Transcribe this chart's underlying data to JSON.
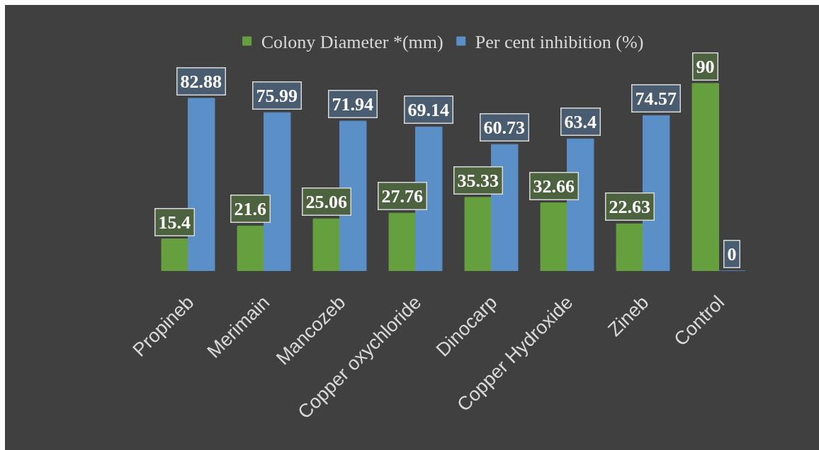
{
  "chart_data": {
    "type": "bar",
    "categories": [
      "Propineb",
      "Merimain",
      "Mancozeb",
      "Copper oxychloride",
      "Dinocarp",
      "Copper Hydroxide",
      "Zineb",
      "Control"
    ],
    "series": [
      {
        "name": "Colony Diameter *(mm)",
        "color": "#66a03e",
        "values": [
          15.4,
          21.6,
          25.06,
          27.76,
          35.33,
          32.66,
          22.63,
          90
        ]
      },
      {
        "name": "Per cent inhibition (%)",
        "color": "#5b8fc8",
        "values": [
          82.88,
          75.99,
          71.94,
          69.14,
          60.73,
          63.4,
          74.57,
          0
        ]
      }
    ],
    "data_labels": true,
    "legend": "top",
    "tick_labels": "x"
  }
}
